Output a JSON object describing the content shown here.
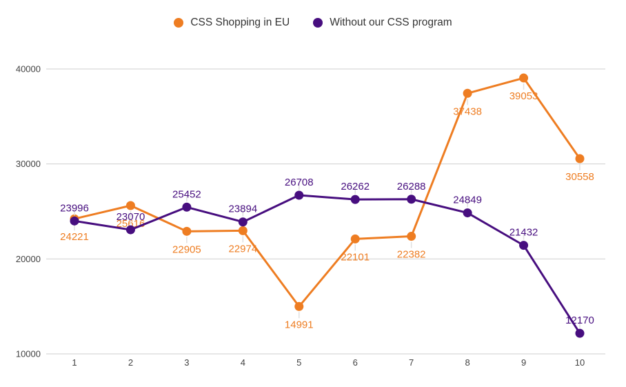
{
  "chart_data": {
    "type": "line",
    "title": "",
    "xlabel": "",
    "ylabel": "",
    "x": [
      1,
      2,
      3,
      4,
      5,
      6,
      7,
      8,
      9,
      10
    ],
    "series": [
      {
        "name": "CSS Shopping in EU",
        "color": "#EE7D22",
        "values": [
          24221,
          25616,
          22905,
          22974,
          14991,
          22101,
          22382,
          37438,
          39053,
          30558
        ],
        "label_position": "below"
      },
      {
        "name": "Without our CSS program",
        "color": "#470E7F",
        "values": [
          23996,
          23070,
          25452,
          23894,
          26708,
          26262,
          26288,
          24849,
          21432,
          12170
        ],
        "label_position": "above"
      }
    ],
    "yticks": [
      10000,
      20000,
      30000,
      40000
    ],
    "ylim": [
      10000,
      40000
    ],
    "grid": true,
    "legend_position": "top-center",
    "gridline_color": "#cfcfcf",
    "axis_label_color": "#424242",
    "leader_line_color": "#e0e0e0",
    "background_color": "#ffffff"
  }
}
